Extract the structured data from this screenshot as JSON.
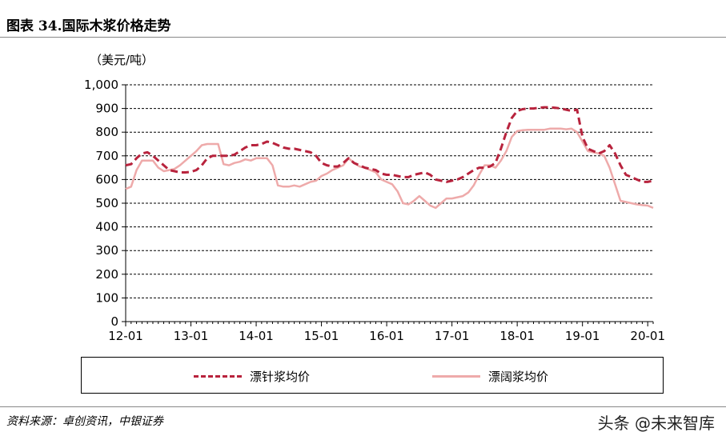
{
  "figure_title": "图表 34.国际木浆价格走势",
  "source_note": "资料来源：卓创资讯，中银证券",
  "watermark": "头条 @未来智库",
  "colors": {
    "needle": "#b8233d",
    "broad": "#eeaaaa",
    "grid": "#000000"
  },
  "chart_data": {
    "type": "line",
    "title": "",
    "ylabel": "（美元/吨）",
    "xlabel": "",
    "ylim": [
      0,
      1000
    ],
    "yticks": [
      0,
      100,
      200,
      300,
      400,
      500,
      600,
      700,
      800,
      900,
      1000
    ],
    "ytick_labels": [
      "0",
      "100",
      "200",
      "300",
      "400",
      "500",
      "600",
      "700",
      "800",
      "900",
      "1,000"
    ],
    "xlim": [
      0,
      97
    ],
    "xtick_labels": [
      "12-01",
      "13-01",
      "14-01",
      "15-01",
      "16-01",
      "17-01",
      "18-01",
      "19-01",
      "20-01"
    ],
    "xtick_positions": [
      0,
      12,
      24,
      36,
      48,
      60,
      72,
      84,
      96
    ],
    "grid": "horizontal",
    "legend": "bottom",
    "series": [
      {
        "name": "漂针浆均价",
        "style": "dashed",
        "x": [
          0,
          1,
          2,
          3,
          4,
          5,
          6,
          7,
          8,
          9,
          10,
          11,
          12,
          13,
          14,
          15,
          16,
          17,
          18,
          19,
          20,
          21,
          22,
          23,
          24,
          25,
          26,
          27,
          28,
          29,
          30,
          31,
          32,
          33,
          34,
          35,
          36,
          37,
          38,
          39,
          40,
          41,
          42,
          43,
          44,
          45,
          46,
          47,
          48,
          49,
          50,
          51,
          52,
          53,
          54,
          55,
          56,
          57,
          58,
          59,
          60,
          61,
          62,
          63,
          64,
          65,
          66,
          67,
          68,
          69,
          70,
          71,
          72,
          73,
          74,
          75,
          76,
          77,
          78,
          79,
          80,
          81,
          82,
          83,
          84,
          85,
          86,
          87,
          88,
          89,
          90,
          91,
          92,
          93,
          94,
          95,
          96,
          97
        ],
        "values": [
          660,
          665,
          690,
          710,
          715,
          700,
          680,
          660,
          640,
          635,
          630,
          630,
          632,
          640,
          660,
          690,
          700,
          700,
          700,
          700,
          705,
          720,
          735,
          745,
          745,
          750,
          760,
          755,
          745,
          735,
          730,
          730,
          725,
          720,
          715,
          700,
          670,
          660,
          655,
          655,
          670,
          690,
          670,
          660,
          650,
          645,
          640,
          625,
          620,
          620,
          615,
          610,
          610,
          620,
          625,
          630,
          620,
          600,
          595,
          590,
          595,
          600,
          610,
          625,
          640,
          650,
          650,
          655,
          670,
          730,
          800,
          860,
          890,
          897,
          900,
          900,
          903,
          905,
          905,
          903,
          900,
          895,
          890,
          895,
          780,
          730,
          720,
          710,
          720,
          745,
          710,
          660,
          620,
          610,
          600,
          590,
          590,
          595
        ]
      },
      {
        "name": "漂阔浆均价",
        "style": "solid",
        "x": [
          0,
          1,
          2,
          3,
          4,
          5,
          6,
          7,
          8,
          9,
          10,
          11,
          12,
          13,
          14,
          15,
          16,
          17,
          18,
          19,
          20,
          21,
          22,
          23,
          24,
          25,
          26,
          27,
          28,
          29,
          30,
          31,
          32,
          33,
          34,
          35,
          36,
          37,
          38,
          39,
          40,
          41,
          42,
          43,
          44,
          45,
          46,
          47,
          48,
          49,
          50,
          51,
          52,
          53,
          54,
          55,
          56,
          57,
          58,
          59,
          60,
          61,
          62,
          63,
          64,
          65,
          66,
          67,
          68,
          69,
          70,
          71,
          72,
          73,
          74,
          75,
          76,
          77,
          78,
          79,
          80,
          81,
          82,
          83,
          84,
          85,
          86,
          87,
          88,
          89,
          90,
          91,
          92,
          93,
          94,
          95,
          96,
          97
        ],
        "values": [
          560,
          570,
          640,
          680,
          680,
          680,
          650,
          635,
          640,
          645,
          660,
          680,
          700,
          720,
          745,
          750,
          750,
          750,
          665,
          660,
          670,
          675,
          685,
          680,
          690,
          690,
          690,
          660,
          575,
          570,
          570,
          575,
          570,
          580,
          590,
          595,
          615,
          625,
          640,
          650,
          660,
          690,
          670,
          655,
          650,
          640,
          630,
          600,
          590,
          580,
          550,
          500,
          495,
          510,
          530,
          510,
          490,
          480,
          500,
          520,
          520,
          525,
          530,
          545,
          575,
          620,
          660,
          660,
          650,
          680,
          720,
          780,
          805,
          808,
          810,
          810,
          810,
          810,
          815,
          815,
          815,
          812,
          815,
          800,
          760,
          720,
          715,
          710,
          700,
          650,
          580,
          510,
          505,
          500,
          495,
          492,
          490,
          480
        ]
      }
    ]
  }
}
